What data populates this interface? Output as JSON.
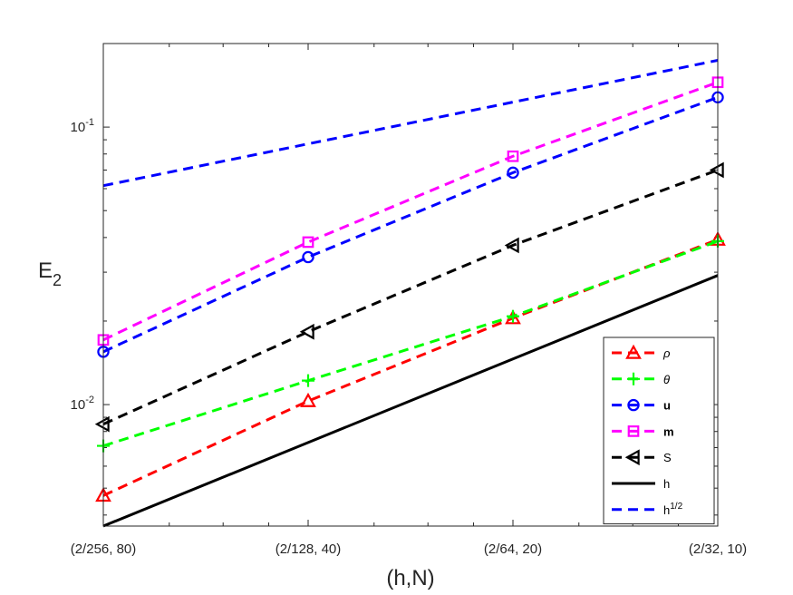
{
  "chart_data": {
    "type": "line",
    "x_scale": "log",
    "y_scale": "log",
    "xlabel": "(h,N)",
    "ylabel_base": "E",
    "ylabel_sub": "2",
    "x_values": [
      0.0078125,
      0.015625,
      0.03125,
      0.0625
    ],
    "x_tick_labels": [
      "(2/256, 80)",
      "(2/128, 40)",
      "(2/64, 20)",
      "(2/32, 10)"
    ],
    "y_ticks": [
      {
        "value": 0.01,
        "base": "10",
        "exp": "-2"
      },
      {
        "value": 0.1,
        "base": "10",
        "exp": "-1"
      }
    ],
    "xlim": [
      0.0078125,
      0.0625
    ],
    "ylim": [
      0.00365,
      0.2
    ],
    "grid": false,
    "legend_position": "bottom-right",
    "series": [
      {
        "name": "ρ",
        "italic": true,
        "bold": false,
        "color": "#ff0000",
        "line": "dashed",
        "marker": "triangle",
        "values": [
          0.0047,
          0.0103,
          0.0205,
          0.0393
        ]
      },
      {
        "name": "θ",
        "italic": true,
        "bold": false,
        "color": "#00ff00",
        "line": "dashed",
        "marker": "plus",
        "values": [
          0.0071,
          0.0122,
          0.0208,
          0.0388
        ]
      },
      {
        "name": "u",
        "italic": false,
        "bold": true,
        "color": "#0000ff",
        "line": "dashed",
        "marker": "circle",
        "values": [
          0.0155,
          0.034,
          0.0685,
          0.128
        ]
      },
      {
        "name": "m",
        "italic": false,
        "bold": true,
        "color": "#ff00ff",
        "line": "dashed",
        "marker": "square",
        "values": [
          0.0171,
          0.0385,
          0.0785,
          0.145
        ]
      },
      {
        "name": "S",
        "italic": false,
        "bold": false,
        "color": "#000000",
        "line": "dashed",
        "marker": "triangle-left",
        "values": [
          0.0085,
          0.0183,
          0.0375,
          0.07
        ]
      },
      {
        "name": "h",
        "italic": false,
        "bold": false,
        "color": "#000000",
        "line": "solid",
        "marker": "none",
        "values": [
          0.00365,
          0.0073,
          0.0146,
          0.0292
        ]
      },
      {
        "name": "h",
        "superscript": "1/2",
        "italic": false,
        "bold": false,
        "color": "#0000ff",
        "line": "dashed",
        "marker": "none",
        "values": [
          0.0615,
          0.087,
          0.123,
          0.174
        ]
      }
    ]
  }
}
